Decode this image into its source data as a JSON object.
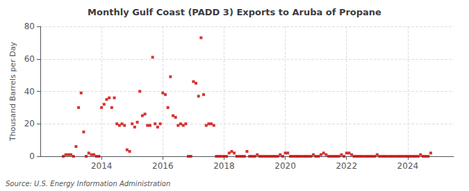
{
  "chart_data": {
    "type": "scatter",
    "title": "Monthly Gulf Coast (PADD 3) Exports to Aruba of Propane",
    "ylabel": "Thousand Barrels per Day",
    "annotation": "Source: U.S. Energy Information Administration",
    "color": "#cc0000",
    "marker": "square",
    "grid": true,
    "xlim": [
      2012.0,
      2025.5
    ],
    "xticks": [
      2014,
      2016,
      2018,
      2020,
      2022,
      2024
    ],
    "ylim": [
      0,
      80
    ],
    "yticks": [
      0,
      20,
      40,
      60,
      80
    ],
    "x": [
      2012.75,
      2012.833,
      2012.917,
      2013.0,
      2013.083,
      2013.167,
      2013.25,
      2013.333,
      2013.417,
      2013.5,
      2013.583,
      2013.667,
      2013.75,
      2013.833,
      2013.917,
      2014.0,
      2014.083,
      2014.167,
      2014.25,
      2014.333,
      2014.417,
      2014.5,
      2014.583,
      2014.667,
      2014.75,
      2014.833,
      2014.917,
      2015.0,
      2015.083,
      2015.167,
      2015.25,
      2015.333,
      2015.417,
      2015.5,
      2015.583,
      2015.667,
      2015.75,
      2015.833,
      2015.917,
      2016.0,
      2016.083,
      2016.167,
      2016.25,
      2016.333,
      2016.417,
      2016.5,
      2016.583,
      2016.667,
      2016.75,
      2016.833,
      2016.917,
      2017.0,
      2017.083,
      2017.167,
      2017.25,
      2017.333,
      2017.417,
      2017.5,
      2017.583,
      2017.667,
      2017.75,
      2017.833,
      2017.917,
      2018.0,
      2018.083,
      2018.167,
      2018.25,
      2018.333,
      2018.417,
      2018.5,
      2018.583,
      2018.667,
      2018.75,
      2018.833,
      2018.917,
      2019.0,
      2019.083,
      2019.167,
      2019.25,
      2019.333,
      2019.417,
      2019.5,
      2019.583,
      2019.667,
      2019.75,
      2019.833,
      2019.917,
      2020.0,
      2020.083,
      2020.167,
      2020.25,
      2020.333,
      2020.417,
      2020.5,
      2020.583,
      2020.667,
      2020.75,
      2020.833,
      2020.917,
      2021.0,
      2021.083,
      2021.167,
      2021.25,
      2021.333,
      2021.417,
      2021.5,
      2021.583,
      2021.667,
      2021.75,
      2021.833,
      2021.917,
      2022.0,
      2022.083,
      2022.167,
      2022.25,
      2022.333,
      2022.417,
      2022.5,
      2022.583,
      2022.667,
      2022.75,
      2022.833,
      2022.917,
      2023.0,
      2023.083,
      2023.167,
      2023.25,
      2023.333,
      2023.417,
      2023.5,
      2023.583,
      2023.667,
      2023.75,
      2023.833,
      2023.917,
      2024.0,
      2024.083,
      2024.167,
      2024.25,
      2024.333,
      2024.417,
      2024.5,
      2024.583,
      2024.667,
      2024.75
    ],
    "values": [
      0,
      1,
      1,
      1,
      0,
      6,
      30,
      39,
      15,
      0,
      2,
      1,
      1,
      0,
      0,
      30,
      32,
      35,
      36,
      30,
      36,
      20,
      19,
      20,
      19,
      4,
      3,
      20,
      18,
      21,
      40,
      25,
      26,
      19,
      19,
      61,
      20,
      18,
      20,
      39,
      38,
      30,
      49,
      25,
      24,
      19,
      20,
      19,
      20,
      0,
      0,
      46,
      45,
      37,
      73,
      38,
      19,
      20,
      20,
      19,
      0,
      0,
      0,
      0,
      0,
      2,
      3,
      2,
      0,
      0,
      0,
      0,
      3,
      0,
      0,
      0,
      1,
      0,
      0,
      0,
      0,
      0,
      0,
      0,
      0,
      1,
      0,
      2,
      2,
      0,
      0,
      0,
      0,
      0,
      0,
      0,
      0,
      0,
      1,
      0,
      0,
      1,
      2,
      1,
      0,
      0,
      0,
      0,
      0,
      1,
      0,
      2,
      2,
      1,
      0,
      0,
      0,
      0,
      0,
      0,
      0,
      0,
      0,
      1,
      0,
      0,
      0,
      0,
      0,
      0,
      0,
      0,
      0,
      0,
      0,
      0,
      0,
      0,
      0,
      0,
      1,
      0,
      0,
      0,
      2
    ]
  }
}
